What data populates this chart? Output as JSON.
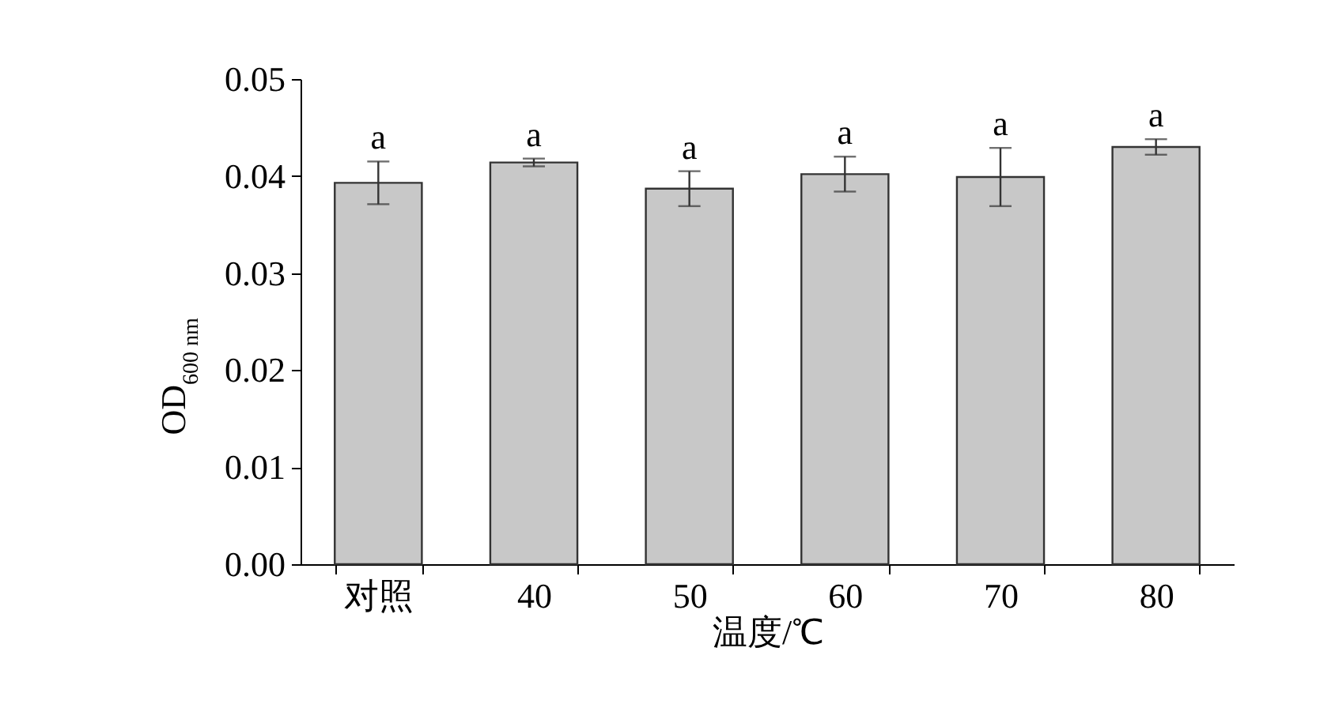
{
  "chart_data": {
    "type": "bar",
    "xlabel": "温度/℃",
    "ylabel": "OD$_{600 nm}$",
    "categories": [
      "对照",
      "40",
      "50",
      "60",
      "70",
      "80"
    ],
    "values": [
      0.0393,
      0.0414,
      0.0387,
      0.0402,
      0.0399,
      0.043
    ],
    "errors": [
      0.0022,
      0.0004,
      0.0018,
      0.0018,
      0.003,
      0.0008
    ],
    "color": "#c8c8c8",
    "ylim": [
      0,
      0.05
    ],
    "yticks": [
      {
        "value": 0,
        "label": "0.00"
      },
      {
        "value": 0.01,
        "label": "0.01"
      },
      {
        "value": 0.02,
        "label": "0.02"
      },
      {
        "value": 0.03,
        "label": "0.03"
      },
      {
        "value": 0.04,
        "label": "0.04"
      },
      {
        "value": 0.05,
        "label": "0.05"
      }
    ],
    "grid": false,
    "legend": false,
    "annotations": [
      {
        "text": "a",
        "x": "对照",
        "y": 0.0415
      },
      {
        "text": "a",
        "x": "40",
        "y": 0.0418
      },
      {
        "text": "a",
        "x": "50",
        "y": 0.0405
      },
      {
        "text": "a",
        "x": "60",
        "y": 0.042
      },
      {
        "text": "a",
        "x": "70",
        "y": 0.0429
      },
      {
        "text": "a",
        "x": "80",
        "y": 0.0438
      }
    ]
  }
}
